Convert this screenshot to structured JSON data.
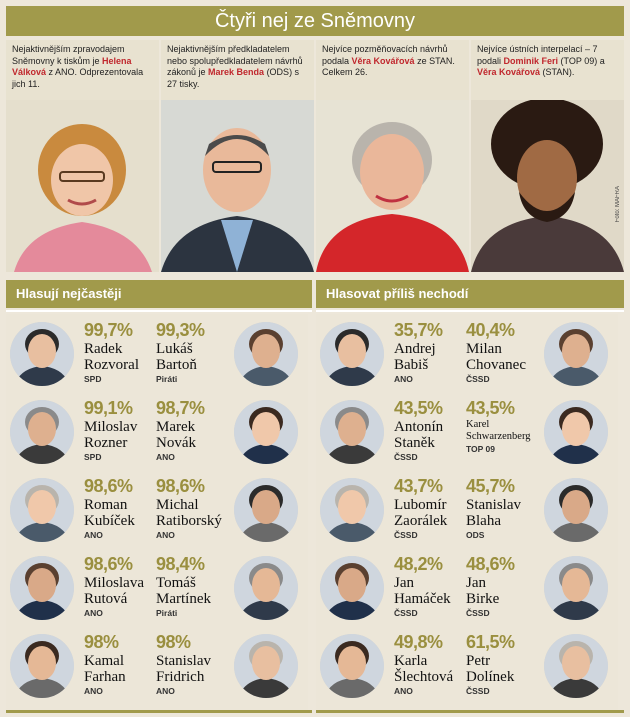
{
  "title": "Čtyři nej ze Sněmovny",
  "top": [
    {
      "pre": "Nejaktivnějším zpravodajem Sněmovny k tiskům je ",
      "hl": "Helena Válková",
      "post": " z ANO. Odprezentovala jich 11."
    },
    {
      "pre": "Nejaktivnějším předkladatelem nebo spolupředkladatelem návrhů zákonů je ",
      "hl": "Marek Benda",
      "post": " (ODS) s 27 tisky."
    },
    {
      "pre": "Nejvíce pozměňovacích návrhů podala ",
      "hl": "Věra Kovářová",
      "post": " ze STAN. Celkem 26."
    },
    {
      "pre": "Nejvíce ústních interpelací – 7 podali ",
      "hl": "Dominik Feri",
      "post": " (TOP 09) a ",
      "hl2": "Věra Kovářová",
      "post2": " (STAN)."
    }
  ],
  "foto": "Foto: MAFRA",
  "left_title": "Hlasují nejčastěji",
  "right_title": "Hlasovat příliš nechodí",
  "left": [
    {
      "a": {
        "pct": "99,7%",
        "first": "Radek",
        "last": "Rozvoral",
        "party": "SPD"
      },
      "b": {
        "pct": "99,3%",
        "first": "Lukáš",
        "last": "Bartoň",
        "party": "Piráti"
      }
    },
    {
      "a": {
        "pct": "99,1%",
        "first": "Miloslav",
        "last": "Rozner",
        "party": "SPD"
      },
      "b": {
        "pct": "98,7%",
        "first": "Marek",
        "last": "Novák",
        "party": "ANO"
      }
    },
    {
      "a": {
        "pct": "98,6%",
        "first": "Roman",
        "last": "Kubíček",
        "party": "ANO"
      },
      "b": {
        "pct": "98,6%",
        "first": "Michal",
        "last": "Ratiborský",
        "party": "ANO"
      }
    },
    {
      "a": {
        "pct": "98,6%",
        "first": "Miloslava",
        "last": "Rutová",
        "party": "ANO"
      },
      "b": {
        "pct": "98,4%",
        "first": "Tomáš",
        "last": "Martínek",
        "party": "Piráti"
      }
    },
    {
      "a": {
        "pct": "98%",
        "first": "Kamal",
        "last": "Farhan",
        "party": "ANO"
      },
      "b": {
        "pct": "98%",
        "first": "Stanislav",
        "last": "Fridrich",
        "party": "ANO"
      }
    }
  ],
  "right": [
    {
      "a": {
        "pct": "35,7%",
        "first": "Andrej",
        "last": "Babiš",
        "party": "ANO"
      },
      "b": {
        "pct": "40,4%",
        "first": "Milan",
        "last": "Chovanec",
        "party": "ČSSD"
      }
    },
    {
      "a": {
        "pct": "43,5%",
        "first": "Antonín",
        "last": "Staněk",
        "party": "ČSSD"
      },
      "b": {
        "pct": "43,5%",
        "first": "Karel",
        "last": "Schwarzenberg",
        "party": "TOP 09"
      }
    },
    {
      "a": {
        "pct": "43,7%",
        "first": "Lubomír",
        "last": "Zaorálek",
        "party": "ČSSD"
      },
      "b": {
        "pct": "45,7%",
        "first": "Stanislav",
        "last": "Blaha",
        "party": "ODS"
      }
    },
    {
      "a": {
        "pct": "48,2%",
        "first": "Jan",
        "last": "Hamáček",
        "party": "ČSSD"
      },
      "b": {
        "pct": "48,6%",
        "first": "Jan",
        "last": "Birke",
        "party": "ČSSD"
      }
    },
    {
      "a": {
        "pct": "49,8%",
        "first": "Karla",
        "last": "Šlechtová",
        "party": "ANO"
      },
      "b": {
        "pct": "61,5%",
        "first": "Petr",
        "last": "Dolínek",
        "party": "ČSSD"
      }
    }
  ]
}
